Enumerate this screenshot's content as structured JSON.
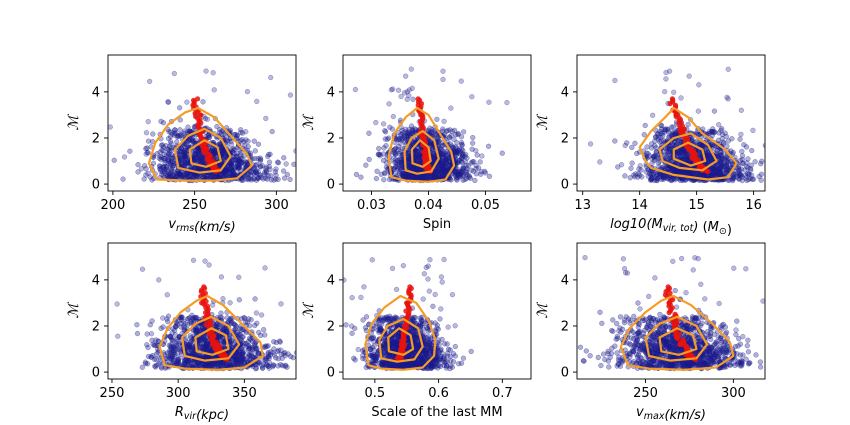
{
  "chart_data": [
    {
      "type": "scatter",
      "xlabel": "v_rms(km/s)",
      "xlabel_parts": [
        {
          "t": "v",
          "s": "i"
        },
        {
          "t": "rms",
          "s": "sub"
        },
        {
          "t": "(km/s)",
          "s": "i"
        }
      ],
      "ylabel": "ℳ",
      "xlim": [
        197,
        312
      ],
      "ylim": [
        -0.3,
        5.6
      ],
      "xticks": [
        200,
        250,
        300
      ],
      "yticks": [
        0,
        2,
        4
      ],
      "series": [
        {
          "name": "halos",
          "color": "#1a1a8c",
          "center": 257,
          "spread_x": 15
        },
        {
          "name": "median",
          "color": "#e8130d"
        },
        {
          "name": "contours",
          "color": "#f59c25"
        }
      ],
      "median_line": [
        [
          250,
          3.7
        ],
        [
          252,
          3.0
        ],
        [
          254,
          2.3
        ],
        [
          256,
          1.7
        ],
        [
          258,
          1.2
        ],
        [
          261,
          0.8
        ],
        [
          264,
          0.55
        ]
      ],
      "contours": {
        "outer": [
          [
            227,
            0.2
          ],
          [
            222,
            0.9
          ],
          [
            226,
            1.8
          ],
          [
            234,
            2.6
          ],
          [
            244,
            3.1
          ],
          [
            252,
            3.3
          ],
          [
            262,
            2.9
          ],
          [
            272,
            2.1
          ],
          [
            282,
            1.3
          ],
          [
            285,
            0.8
          ],
          [
            276,
            0.25
          ],
          [
            262,
            0.15
          ],
          [
            245,
            0.15
          ]
        ],
        "mid": [
          [
            240,
            0.7
          ],
          [
            238,
            1.5
          ],
          [
            246,
            2.1
          ],
          [
            256,
            2.4
          ],
          [
            266,
            2.0
          ],
          [
            272,
            1.2
          ],
          [
            266,
            0.6
          ],
          [
            253,
            0.5
          ]
        ],
        "inner": [
          [
            248,
            0.9
          ],
          [
            247,
            1.5
          ],
          [
            256,
            1.9
          ],
          [
            264,
            1.6
          ],
          [
            266,
            1.0
          ],
          [
            257,
            0.75
          ]
        ]
      }
    },
    {
      "type": "scatter",
      "xlabel": "Spin",
      "xlabel_parts": [
        {
          "t": "Spin",
          "s": "n"
        }
      ],
      "ylabel": "ℳ",
      "xlim": [
        0.025,
        0.058
      ],
      "ylim": [
        -0.3,
        5.6
      ],
      "xticks": [
        0.03,
        0.04,
        0.05
      ],
      "yticks": [
        0,
        2,
        4
      ],
      "series": [
        {
          "name": "halos",
          "color": "#1a1a8c",
          "center": 0.0395,
          "spread_x": 0.0032
        },
        {
          "name": "median",
          "color": "#e8130d"
        },
        {
          "name": "contours",
          "color": "#f59c25"
        }
      ],
      "median_line": [
        [
          0.0383,
          3.7
        ],
        [
          0.0386,
          3.0
        ],
        [
          0.0389,
          2.3
        ],
        [
          0.0392,
          1.7
        ],
        [
          0.0395,
          1.2
        ],
        [
          0.0398,
          0.8
        ],
        [
          0.0401,
          0.55
        ]
      ],
      "contours": {
        "outer": [
          [
            0.0335,
            0.3
          ],
          [
            0.033,
            1.2
          ],
          [
            0.034,
            2.2
          ],
          [
            0.036,
            2.9
          ],
          [
            0.038,
            3.3
          ],
          [
            0.04,
            3.0
          ],
          [
            0.042,
            2.2
          ],
          [
            0.044,
            1.4
          ],
          [
            0.0445,
            0.8
          ],
          [
            0.043,
            0.2
          ],
          [
            0.04,
            0.1
          ],
          [
            0.036,
            0.15
          ]
        ],
        "mid": [
          [
            0.036,
            0.6
          ],
          [
            0.0358,
            1.4
          ],
          [
            0.037,
            2.0
          ],
          [
            0.039,
            2.3
          ],
          [
            0.041,
            1.9
          ],
          [
            0.0418,
            1.1
          ],
          [
            0.0405,
            0.55
          ],
          [
            0.038,
            0.45
          ]
        ],
        "inner": [
          [
            0.0372,
            0.9
          ],
          [
            0.0371,
            1.5
          ],
          [
            0.0385,
            1.9
          ],
          [
            0.04,
            1.6
          ],
          [
            0.0404,
            1.0
          ],
          [
            0.039,
            0.75
          ]
        ]
      }
    },
    {
      "type": "scatter",
      "xlabel": "log10(M_vir,tot) (M_⊙)",
      "xlabel_parts": [
        {
          "t": "log",
          "s": "i"
        },
        {
          "t": "10",
          "s": "i"
        },
        {
          "t": "(",
          "s": "i"
        },
        {
          "t": "M",
          "s": "i"
        },
        {
          "t": "vir, tot",
          "s": "sub"
        },
        {
          "t": ")",
          "s": "i"
        },
        {
          "t": " (",
          "s": "n"
        },
        {
          "t": "M",
          "s": "i"
        },
        {
          "t": "⊙",
          "s": "sub"
        },
        {
          "t": ")",
          "s": "n"
        }
      ],
      "ylabel": "ℳ",
      "xlim": [
        12.9,
        16.2
      ],
      "ylim": [
        -0.3,
        5.6
      ],
      "xticks": [
        13,
        14,
        15,
        16
      ],
      "yticks": [
        0,
        2,
        4
      ],
      "series": [
        {
          "name": "halos",
          "color": "#1a1a8c",
          "center": 14.9,
          "spread_x": 0.38
        },
        {
          "name": "median",
          "color": "#e8130d"
        },
        {
          "name": "contours",
          "color": "#f59c25"
        }
      ],
      "median_line": [
        [
          14.55,
          3.7
        ],
        [
          14.65,
          3.0
        ],
        [
          14.75,
          2.3
        ],
        [
          14.85,
          1.7
        ],
        [
          14.95,
          1.2
        ],
        [
          15.05,
          0.8
        ],
        [
          15.15,
          0.55
        ]
      ],
      "contours": {
        "outer": [
          [
            14.1,
            1.0
          ],
          [
            14.0,
            1.6
          ],
          [
            14.2,
            2.3
          ],
          [
            14.45,
            2.9
          ],
          [
            14.6,
            3.3
          ],
          [
            14.85,
            2.9
          ],
          [
            15.1,
            2.2
          ],
          [
            15.5,
            1.5
          ],
          [
            15.7,
            0.9
          ],
          [
            15.55,
            0.3
          ],
          [
            15.2,
            0.2
          ],
          [
            14.6,
            0.4
          ],
          [
            14.2,
            0.7
          ]
        ],
        "mid": [
          [
            14.4,
            1.0
          ],
          [
            14.35,
            1.5
          ],
          [
            14.6,
            2.0
          ],
          [
            14.9,
            2.2
          ],
          [
            15.2,
            1.7
          ],
          [
            15.35,
            1.0
          ],
          [
            15.1,
            0.6
          ],
          [
            14.7,
            0.7
          ]
        ],
        "inner": [
          [
            14.6,
            1.1
          ],
          [
            14.6,
            1.5
          ],
          [
            14.85,
            1.8
          ],
          [
            15.1,
            1.5
          ],
          [
            15.15,
            1.0
          ],
          [
            14.9,
            0.8
          ]
        ]
      }
    },
    {
      "type": "scatter",
      "xlabel": "R_vir(kpc)",
      "xlabel_parts": [
        {
          "t": "R",
          "s": "i"
        },
        {
          "t": "vir",
          "s": "sub"
        },
        {
          "t": "(kpc)",
          "s": "i"
        }
      ],
      "ylabel": "ℳ",
      "xlim": [
        247,
        389
      ],
      "ylim": [
        -0.3,
        5.6
      ],
      "xticks": [
        250,
        300,
        350
      ],
      "yticks": [
        0,
        2,
        4
      ],
      "series": [
        {
          "name": "halos",
          "color": "#1a1a8c",
          "center": 325,
          "spread_x": 19
        },
        {
          "name": "median",
          "color": "#e8130d"
        },
        {
          "name": "contours",
          "color": "#f59c25"
        }
      ],
      "median_line": [
        [
          318,
          3.7
        ],
        [
          320,
          3.0
        ],
        [
          322,
          2.3
        ],
        [
          325,
          1.7
        ],
        [
          328,
          1.2
        ],
        [
          332,
          0.8
        ],
        [
          336,
          0.55
        ]
      ],
      "contours": {
        "outer": [
          [
            290,
            0.3
          ],
          [
            286,
            1.1
          ],
          [
            292,
            1.9
          ],
          [
            302,
            2.6
          ],
          [
            314,
            3.1
          ],
          [
            322,
            3.3
          ],
          [
            334,
            2.9
          ],
          [
            348,
            2.1
          ],
          [
            362,
            1.3
          ],
          [
            364,
            0.7
          ],
          [
            350,
            0.2
          ],
          [
            330,
            0.1
          ],
          [
            305,
            0.15
          ]
        ],
        "mid": [
          [
            305,
            0.7
          ],
          [
            303,
            1.5
          ],
          [
            313,
            2.1
          ],
          [
            325,
            2.4
          ],
          [
            338,
            2.0
          ],
          [
            346,
            1.2
          ],
          [
            338,
            0.6
          ],
          [
            320,
            0.5
          ]
        ],
        "inner": [
          [
            314,
            0.9
          ],
          [
            313,
            1.5
          ],
          [
            325,
            1.9
          ],
          [
            336,
            1.6
          ],
          [
            338,
            1.0
          ],
          [
            326,
            0.75
          ]
        ]
      }
    },
    {
      "type": "scatter",
      "xlabel": "Scale of the last MM",
      "xlabel_parts": [
        {
          "t": "Scale of the last MM",
          "s": "n"
        }
      ],
      "ylabel": "ℳ",
      "xlim": [
        0.45,
        0.745
      ],
      "ylim": [
        -0.3,
        5.6
      ],
      "xticks": [
        0.5,
        0.6,
        0.7
      ],
      "yticks": [
        0,
        2,
        4
      ],
      "series": [
        {
          "name": "halos",
          "color": "#1a1a8c",
          "center": 0.545,
          "spread_x": 0.026
        },
        {
          "name": "median",
          "color": "#e8130d"
        },
        {
          "name": "contours",
          "color": "#f59c25"
        }
      ],
      "median_line": [
        [
          0.556,
          3.7
        ],
        [
          0.553,
          3.0
        ],
        [
          0.55,
          2.3
        ],
        [
          0.547,
          1.7
        ],
        [
          0.544,
          1.2
        ],
        [
          0.541,
          0.8
        ],
        [
          0.538,
          0.55
        ]
      ],
      "contours": {
        "outer": [
          [
            0.49,
            0.3
          ],
          [
            0.485,
            1.2
          ],
          [
            0.495,
            2.1
          ],
          [
            0.515,
            2.8
          ],
          [
            0.54,
            3.3
          ],
          [
            0.565,
            3.0
          ],
          [
            0.585,
            2.2
          ],
          [
            0.595,
            1.4
          ],
          [
            0.593,
            0.7
          ],
          [
            0.575,
            0.2
          ],
          [
            0.545,
            0.1
          ],
          [
            0.51,
            0.15
          ]
        ],
        "mid": [
          [
            0.51,
            0.6
          ],
          [
            0.507,
            1.4
          ],
          [
            0.52,
            2.0
          ],
          [
            0.545,
            2.3
          ],
          [
            0.568,
            1.9
          ],
          [
            0.575,
            1.1
          ],
          [
            0.562,
            0.55
          ],
          [
            0.535,
            0.45
          ]
        ],
        "inner": [
          [
            0.522,
            0.9
          ],
          [
            0.521,
            1.5
          ],
          [
            0.538,
            1.9
          ],
          [
            0.556,
            1.6
          ],
          [
            0.56,
            1.0
          ],
          [
            0.545,
            0.75
          ]
        ]
      }
    },
    {
      "type": "scatter",
      "xlabel": "v_max(km/s)",
      "xlabel_parts": [
        {
          "t": "v",
          "s": "i"
        },
        {
          "t": "max",
          "s": "sub"
        },
        {
          "t": "(km/s)",
          "s": "i"
        }
      ],
      "ylabel": "ℳ",
      "xlim": [
        211,
        318
      ],
      "ylim": [
        -0.3,
        5.6
      ],
      "xticks": [
        250,
        300
      ],
      "yticks": [
        0,
        2,
        4
      ],
      "series": [
        {
          "name": "halos",
          "color": "#1a1a8c",
          "center": 268,
          "spread_x": 15
        },
        {
          "name": "median",
          "color": "#e8130d"
        },
        {
          "name": "contours",
          "color": "#f59c25"
        }
      ],
      "median_line": [
        [
          262,
          3.7
        ],
        [
          264,
          3.0
        ],
        [
          266,
          2.3
        ],
        [
          268,
          1.7
        ],
        [
          271,
          1.2
        ],
        [
          274,
          0.8
        ],
        [
          277,
          0.55
        ]
      ],
      "contours": {
        "outer": [
          [
            240,
            0.3
          ],
          [
            236,
            1.1
          ],
          [
            241,
            1.9
          ],
          [
            250,
            2.6
          ],
          [
            259,
            3.1
          ],
          [
            266,
            3.3
          ],
          [
            276,
            2.9
          ],
          [
            288,
            2.1
          ],
          [
            298,
            1.3
          ],
          [
            300,
            0.7
          ],
          [
            290,
            0.2
          ],
          [
            272,
            0.1
          ],
          [
            252,
            0.15
          ]
        ],
        "mid": [
          [
            252,
            0.7
          ],
          [
            250,
            1.5
          ],
          [
            258,
            2.1
          ],
          [
            268,
            2.4
          ],
          [
            279,
            2.0
          ],
          [
            285,
            1.2
          ],
          [
            279,
            0.6
          ],
          [
            264,
            0.5
          ]
        ],
        "inner": [
          [
            259,
            0.9
          ],
          [
            258,
            1.5
          ],
          [
            268,
            1.9
          ],
          [
            277,
            1.6
          ],
          [
            279,
            1.0
          ],
          [
            269,
            0.75
          ]
        ]
      }
    }
  ]
}
